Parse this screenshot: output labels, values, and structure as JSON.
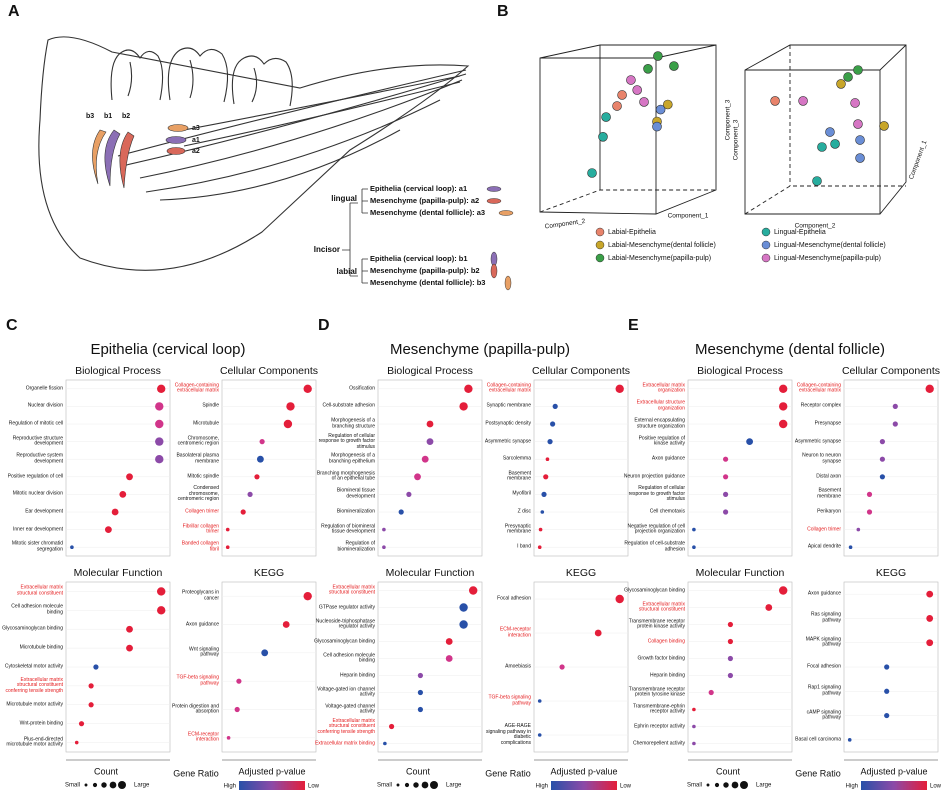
{
  "panel_a": {
    "letter": "A",
    "labels": [
      "a3",
      "a1",
      "a2",
      "b3",
      "b1",
      "b2"
    ],
    "incisor": "Incisor",
    "lingual": "lingual",
    "labial": "labial",
    "lingual_items": [
      "Epithelia (cervical loop): a1",
      "Mesenchyme (papilla-pulp): a2",
      "Mesenchyme (dental follicle): a3"
    ],
    "labial_items": [
      "Epithelia (cervical loop): b1",
      "Mesenchyme (papilla-pulp): b2",
      "Mesenchyme (dental follicle): b3"
    ]
  },
  "panel_b": {
    "letter": "B",
    "groups": [
      {
        "name": "Labial-Epithelia",
        "color": "#e8836b"
      },
      {
        "name": "Labial-Mesenchyme(dental follicle)",
        "color": "#c8a62a"
      },
      {
        "name": "Labial-Mesenchyme(papilla-pulp)",
        "color": "#3a9f48"
      },
      {
        "name": "Lingual-Epithelia",
        "color": "#27ad9e"
      },
      {
        "name": "Lingual-Mesenchyme(dental follicle)",
        "color": "#6a8ed6"
      },
      {
        "name": "Lingual-Mesenchyme(papilla-pulp)",
        "color": "#d676c4"
      }
    ],
    "plots": [
      {
        "labels": [
          "Component_2",
          "Component_1",
          "Component_3"
        ],
        "xlim": [
          0,
          100
        ],
        "ylim": [
          0,
          100
        ],
        "series": [
          {
            "x": [
              45.6,
              42.8
            ],
            "y": [
              70.6,
              64.1
            ]
          },
          {
            "x": [
              71,
              65
            ],
            "y": [
              65,
              55
            ]
          },
          {
            "x": [
              65.5,
              74.4,
              60
            ],
            "y": [
              93.5,
              87.6,
              86
            ]
          },
          {
            "x": [
              36.7,
              35,
              28.9
            ],
            "y": [
              57.6,
              46,
              24.7
            ]
          },
          {
            "x": [
              65,
              67
            ],
            "y": [
              52,
              62
            ]
          },
          {
            "x": [
              50.5,
              54,
              57.8
            ],
            "y": [
              79.4,
              73.5,
              66.5
            ]
          }
        ]
      },
      {
        "labels": [
          "Component_3",
          "Component_2",
          "Component_1"
        ],
        "xlim": [
          0,
          100
        ],
        "ylim": [
          0,
          100
        ],
        "series": [
          {
            "x": [
              18.8
            ],
            "y": [
              67.1
            ]
          },
          {
            "x": [
              60,
              86.9
            ],
            "y": [
              77.1,
              52.4
            ]
          },
          {
            "x": [
              64.4,
              70.6
            ],
            "y": [
              81.2,
              85.3
            ]
          },
          {
            "x": [
              48.1,
              45,
              56.3
            ],
            "y": [
              40,
              20,
              41.8
            ]
          },
          {
            "x": [
              71.9,
              71.9,
              53.1
            ],
            "y": [
              44.1,
              33.5,
              48.8
            ]
          },
          {
            "x": [
              36.3,
              68.8,
              70.6
            ],
            "y": [
              67.1,
              65.9,
              53.5
            ]
          }
        ]
      }
    ]
  },
  "dot_xlim": [
    0,
    1
  ],
  "highlight_color": "#e41a1c",
  "legend": {
    "count": "Count",
    "small": "Small",
    "large": "Large",
    "gene_ratio": "Gene Ratio",
    "padj": "Adjusted p-value",
    "high": "High",
    "low": "Low"
  },
  "panels": [
    {
      "letter": "C",
      "title": "Epithelia (cervical loop)",
      "subplots": [
        {
          "title": "Biological Process",
          "terms": [
            "Organelle fission",
            "Nuclear division",
            "Regulation of mitotic cell",
            "Reproductive structure development",
            "Reproductive system development",
            "Positive regulation of cell",
            "Mitotic nuclear division",
            "Ear development",
            "Inner ear development",
            "Mitotic sister chromatid segregation"
          ],
          "gene_ratio": [
            0.95,
            0.93,
            0.93,
            0.93,
            0.93,
            0.62,
            0.55,
            0.47,
            0.4,
            0.02
          ],
          "count": [
            4,
            4,
            4,
            4,
            4,
            3,
            3,
            3,
            3,
            1
          ],
          "colors": [
            "#e41e3a",
            "#d1358a",
            "#d1358a",
            "#8c4aa8",
            "#8c4aa8",
            "#e41e3a",
            "#e41e3a",
            "#e41e3a",
            "#e41e3a",
            "#2850a8"
          ],
          "highlighted": []
        },
        {
          "title": "Cellular Components",
          "terms": [
            "Collagen-containing extracellular matrix",
            "Spindle",
            "Microtubule",
            "Chromosome, centromeric region",
            "Basolateral plasma membrane",
            "Mitotic spindle",
            "Condensed chromosome, centromeric region",
            "Collagen trimer",
            "Fibrillar collagen trimer",
            "Banded collagen fibril"
          ],
          "gene_ratio": [
            0.95,
            0.75,
            0.72,
            0.42,
            0.4,
            0.36,
            0.28,
            0.2,
            0.02,
            0.02
          ],
          "count": [
            4,
            4,
            4,
            2,
            3,
            2,
            2,
            2,
            1,
            1
          ],
          "colors": [
            "#e41e3a",
            "#e41e3a",
            "#e41e3a",
            "#d1358a",
            "#2850a8",
            "#e41e3a",
            "#8c4aa8",
            "#e41e3a",
            "#e41e3a",
            "#e41e3a"
          ],
          "highlighted": [
            0,
            7,
            8,
            9
          ]
        },
        {
          "title": "Molecular Function",
          "terms": [
            "Extracellular matrix structural constituent",
            "Cell adhesion molecule binding",
            "Glycosaminoglycan binding",
            "Microtubule binding",
            "Cytoskeletal motor activity",
            "Extracellular matrix structural constituent conferring tensile strength",
            "Microtubule motor activity",
            "Wnt-protein binding",
            "Plus-end-directed microtubule motor activity"
          ],
          "gene_ratio": [
            0.95,
            0.95,
            0.62,
            0.62,
            0.27,
            0.22,
            0.22,
            0.12,
            0.07
          ],
          "count": [
            4,
            4,
            3,
            3,
            2,
            2,
            2,
            2,
            1
          ],
          "colors": [
            "#e41e3a",
            "#e41e3a",
            "#e41e3a",
            "#e41e3a",
            "#2850a8",
            "#e41e3a",
            "#e41e3a",
            "#e41e3a",
            "#e41e3a"
          ],
          "highlighted": [
            0,
            5
          ]
        },
        {
          "title": "KEGG",
          "terms": [
            "Proteoglycans in cancer",
            "Axon guidance",
            "Wnt signaling pathway",
            "TGF-beta signaling pathway",
            "Protein digestion and absorption",
            "ECM-receptor interaction"
          ],
          "gene_ratio": [
            0.95,
            0.7,
            0.45,
            0.15,
            0.13,
            0.03
          ],
          "count": [
            4,
            3,
            3,
            2,
            2,
            1
          ],
          "colors": [
            "#e41e3a",
            "#e41e3a",
            "#2850a8",
            "#d1358a",
            "#d1358a",
            "#d1358a"
          ],
          "highlighted": [
            3,
            5
          ]
        }
      ]
    },
    {
      "letter": "D",
      "title": "Mesenchyme (papilla-pulp)",
      "subplots": [
        {
          "title": "Biological Process",
          "terms": [
            "Ossification",
            "Cell-substrate adhesion",
            "Morphogenesis of a branching structure",
            "Regulation of cellular response to growth factor stimulus",
            "Morphogenesis of a branching epithelium",
            "Branching morphogenesis of an epithelial tube",
            "Biomineral tissue development",
            "Biomineralization",
            "Regulation of biomineral tissue development",
            "Regulation of biomineralization"
          ],
          "gene_ratio": [
            0.9,
            0.85,
            0.5,
            0.5,
            0.45,
            0.37,
            0.28,
            0.2,
            0.02,
            0.02
          ],
          "count": [
            4,
            4,
            3,
            3,
            3,
            3,
            2,
            2,
            1,
            1
          ],
          "colors": [
            "#e41e3a",
            "#e41e3a",
            "#e41e3a",
            "#8c4aa8",
            "#d1358a",
            "#d1358a",
            "#8c4aa8",
            "#2850a8",
            "#8c4aa8",
            "#8c4aa8"
          ],
          "highlighted": []
        },
        {
          "title": "Cellular Components",
          "terms": [
            "Collagen-containing extracellular matrix",
            "Synaptic membrane",
            "Postsynaptic density",
            "Asymmetric synapse",
            "Sarcolemma",
            "Basement membrane",
            "Myofibril",
            "Z disc",
            "Presynaptic membrane",
            "I band"
          ],
          "gene_ratio": [
            0.95,
            0.2,
            0.17,
            0.14,
            0.11,
            0.09,
            0.07,
            0.05,
            0.03,
            0.02
          ],
          "count": [
            4,
            2,
            2,
            2,
            1,
            2,
            2,
            1,
            1,
            1
          ],
          "colors": [
            "#e41e3a",
            "#2850a8",
            "#2850a8",
            "#2850a8",
            "#e41e3a",
            "#e41e3a",
            "#2850a8",
            "#2850a8",
            "#e41e3a",
            "#e41e3a"
          ],
          "highlighted": [
            0
          ]
        },
        {
          "title": "Molecular Function",
          "terms": [
            "Extracellular matrix structural constituent",
            "GTPase regulator activity",
            "Nucleoside-triphosphatase regulator activity",
            "Glycosaminoglycan binding",
            "Cell adhesion molecule binding",
            "Heparin binding",
            "Voltage-gated ion channel activity",
            "Voltage-gated channel activity",
            "Extracellular matrix structural constituent conferring tensile strength",
            "Extracellular matrix binding"
          ],
          "gene_ratio": [
            0.95,
            0.85,
            0.85,
            0.7,
            0.7,
            0.4,
            0.4,
            0.4,
            0.1,
            0.03
          ],
          "count": [
            4,
            4,
            4,
            3,
            3,
            2,
            2,
            2,
            2,
            1
          ],
          "colors": [
            "#e41e3a",
            "#2850a8",
            "#2850a8",
            "#e41e3a",
            "#d1358a",
            "#8c4aa8",
            "#2850a8",
            "#2850a8",
            "#e41e3a",
            "#2850a8"
          ],
          "highlighted": [
            0,
            8,
            9
          ]
        },
        {
          "title": "KEGG",
          "terms": [
            "Focal adhesion",
            "ECM-receptor interaction",
            "Amoebiasis",
            "TGF-beta signaling pathway",
            "AGE-RAGE signaling pathway in diabetic complications"
          ],
          "gene_ratio": [
            0.95,
            0.7,
            0.28,
            0.02,
            0.02
          ],
          "count": [
            4,
            3,
            2,
            1,
            1
          ],
          "colors": [
            "#e41e3a",
            "#e41e3a",
            "#d1358a",
            "#2850a8",
            "#2850a8"
          ],
          "highlighted": [
            1,
            3
          ]
        }
      ]
    },
    {
      "letter": "E",
      "title": "Mesenchyme (dental follicle)",
      "subplots": [
        {
          "title": "Biological Process",
          "terms": [
            "Extracellular matrix organization",
            "Extracellular structure organization",
            "External encapsulating structure organization",
            "Positive regulation of kinase activity",
            "Axon guidance",
            "Neuron projection guidance",
            "Regulation of cellular response to growth factor stimulus",
            "Cell chemotaxis",
            "Negative regulation of cell projection organization",
            "Regulation of cell-substrate adhesion"
          ],
          "gene_ratio": [
            0.95,
            0.95,
            0.95,
            0.6,
            0.35,
            0.35,
            0.35,
            0.35,
            0.02,
            0.02
          ],
          "count": [
            4,
            4,
            4,
            3,
            2,
            2,
            2,
            2,
            1,
            1
          ],
          "colors": [
            "#e41e3a",
            "#e41e3a",
            "#e41e3a",
            "#2850a8",
            "#d1358a",
            "#d1358a",
            "#8c4aa8",
            "#8c4aa8",
            "#2850a8",
            "#2850a8"
          ],
          "highlighted": [
            0,
            1
          ]
        },
        {
          "title": "Cellular Components",
          "terms": [
            "Collagen-containing extracellular matrix",
            "Receptor complex",
            "Presynapse",
            "Asymmetric synapse",
            "Neuron to neuron synapse",
            "Distal axon",
            "Basement membrane",
            "Perikaryon",
            "Collagen trimer",
            "Apical dendrite"
          ],
          "gene_ratio": [
            0.95,
            0.55,
            0.55,
            0.4,
            0.4,
            0.4,
            0.25,
            0.25,
            0.12,
            0.03
          ],
          "count": [
            4,
            2,
            2,
            2,
            2,
            2,
            2,
            2,
            1,
            1
          ],
          "colors": [
            "#e41e3a",
            "#8c4aa8",
            "#8c4aa8",
            "#8c4aa8",
            "#8c4aa8",
            "#2850a8",
            "#d1358a",
            "#d1358a",
            "#8c4aa8",
            "#2850a8"
          ],
          "highlighted": [
            0,
            8
          ]
        },
        {
          "title": "Molecular Function",
          "terms": [
            "Glycosaminoglycan binding",
            "Extracellular matrix structural constituent",
            "Transmembrane receptor protein kinase activity",
            "Collagen binding",
            "Growth factor binding",
            "Heparin binding",
            "Transmembrane receptor protein tyrosine kinase",
            "Transmembrane-ephrin receptor activity",
            "Ephrin receptor activity",
            "Chemorepellent activity"
          ],
          "gene_ratio": [
            0.95,
            0.8,
            0.4,
            0.4,
            0.4,
            0.4,
            0.2,
            0.02,
            0.02,
            0.02
          ],
          "count": [
            4,
            3,
            2,
            2,
            2,
            2,
            2,
            1,
            1,
            1
          ],
          "colors": [
            "#e41e3a",
            "#e41e3a",
            "#e41e3a",
            "#e41e3a",
            "#8c4aa8",
            "#8c4aa8",
            "#d1358a",
            "#e41e3a",
            "#8c4aa8",
            "#8c4aa8"
          ],
          "highlighted": [
            1,
            3
          ]
        },
        {
          "title": "KEGG",
          "terms": [
            "Axon guidance",
            "Ras signaling pathway",
            "MAPK signaling pathway",
            "Focal adhesion",
            "Rap1 signaling pathway",
            "cAMP signaling pathway",
            "Basal cell carcinoma"
          ],
          "gene_ratio": [
            0.95,
            0.95,
            0.95,
            0.45,
            0.45,
            0.45,
            0.02
          ],
          "count": [
            3,
            3,
            3,
            2,
            2,
            2,
            1
          ],
          "colors": [
            "#e41e3a",
            "#e41e3a",
            "#e41e3a",
            "#2850a8",
            "#2850a8",
            "#2850a8",
            "#2850a8"
          ],
          "highlighted": []
        }
      ]
    }
  ]
}
